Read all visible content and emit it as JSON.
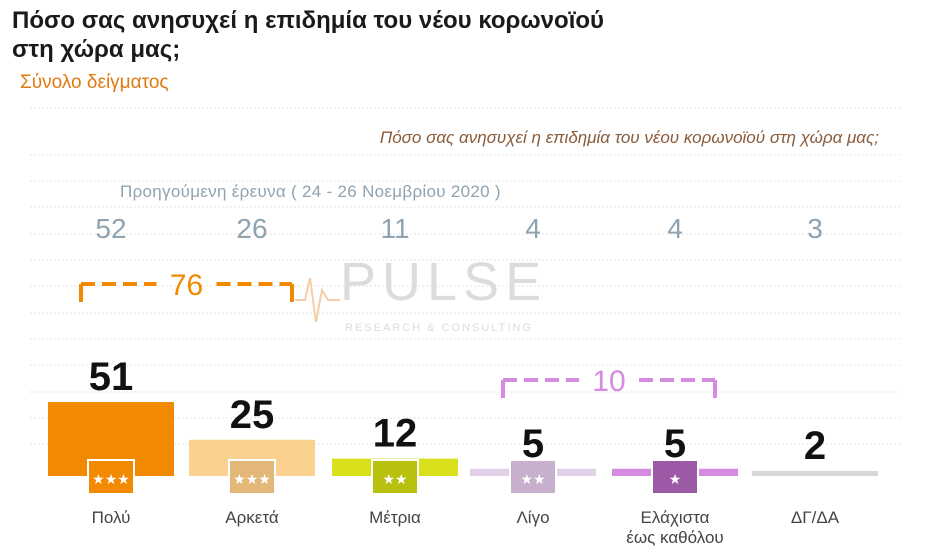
{
  "title": "Πόσο σας ανησυχεί η επιδημία του νέου κορωνοϊού στη χώρα μας;",
  "subtitle": "Σύνολο δείγματος",
  "question": "Πόσο σας ανησυχεί η επιδημία του νέου κορωνοϊού στη χώρα μας;",
  "previous_caption": "Προηγούμενη έρευνα  ( 24 - 26  Νοεμβρίου  2020 )",
  "watermark": {
    "name": "PULSE",
    "tagline": "RESEARCH & CONSULTING"
  },
  "chart_data": {
    "type": "bar",
    "title": "Πόσο σας ανησυχεί η επιδημία του νέου κορωνοϊού στη χώρα μας;",
    "categories": [
      [
        "Πολύ"
      ],
      [
        "Αρκετά"
      ],
      [
        "Μέτρια"
      ],
      [
        "Λίγο"
      ],
      [
        "Ελάχιστα",
        "έως καθόλου"
      ],
      [
        "ΔΓ/ΔΑ"
      ]
    ],
    "series": [
      {
        "name": "Προηγούμενη έρευνα  ( 24 - 26  Νοεμβρίου  2020 )",
        "values": [
          52,
          26,
          11,
          4,
          4,
          3
        ]
      },
      {
        "values": [
          51,
          25,
          12,
          5,
          5,
          2
        ]
      }
    ],
    "bar_colors": [
      "#f18a00",
      "#fbd190",
      "#d8e01b",
      "#e2d0e6",
      "#d58be0",
      "#d7d7d7"
    ],
    "badge_colors": [
      "#f18a00",
      "#e3b777",
      "#b8c10d",
      "#c7b0cd",
      "#9c5aa6",
      null
    ],
    "brackets": [
      {
        "label": "76",
        "from": 0,
        "to": 1,
        "color": "#f18a00"
      },
      {
        "label": "10",
        "from": 3,
        "to": 4,
        "color": "#d58be0"
      }
    ],
    "ylim": [
      0,
      100
    ],
    "grid": true,
    "legend": "none"
  }
}
